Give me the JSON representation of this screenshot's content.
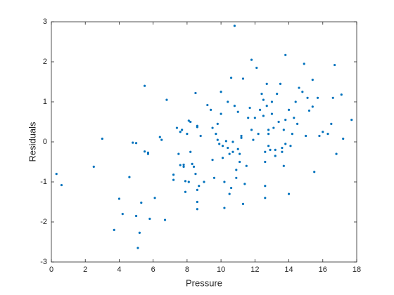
{
  "chart_data": {
    "type": "scatter",
    "xlabel": "Pressure",
    "ylabel": "Residuals",
    "xlim": [
      0,
      18
    ],
    "ylim": [
      -3,
      3
    ],
    "xticks": [
      0,
      2,
      4,
      6,
      8,
      10,
      12,
      14,
      16,
      18
    ],
    "yticks": [
      -3,
      -2,
      -1,
      0,
      1,
      2,
      3
    ],
    "color": "#0072bd",
    "box": true,
    "points": [
      [
        0.3,
        -0.8
      ],
      [
        0.6,
        -1.08
      ],
      [
        2.5,
        -0.62
      ],
      [
        3.0,
        0.08
      ],
      [
        3.7,
        -2.2
      ],
      [
        4.0,
        -1.42
      ],
      [
        4.2,
        -1.8
      ],
      [
        4.6,
        -0.88
      ],
      [
        4.8,
        -0.02
      ],
      [
        5.0,
        -0.03
      ],
      [
        5.0,
        -1.85
      ],
      [
        5.1,
        -2.65
      ],
      [
        5.2,
        -2.27
      ],
      [
        5.3,
        -1.52
      ],
      [
        5.5,
        1.4
      ],
      [
        5.5,
        -0.24
      ],
      [
        5.7,
        -0.27
      ],
      [
        5.7,
        -0.3
      ],
      [
        5.8,
        -1.92
      ],
      [
        6.1,
        -1.4
      ],
      [
        6.4,
        0.12
      ],
      [
        6.5,
        0.05
      ],
      [
        6.7,
        -1.95
      ],
      [
        6.8,
        1.05
      ],
      [
        7.2,
        -0.82
      ],
      [
        7.2,
        -0.95
      ],
      [
        7.4,
        0.35
      ],
      [
        7.5,
        -0.3
      ],
      [
        7.6,
        0.25
      ],
      [
        7.6,
        -0.58
      ],
      [
        7.7,
        0.3
      ],
      [
        7.8,
        -0.57
      ],
      [
        7.8,
        -0.62
      ],
      [
        7.9,
        -0.98
      ],
      [
        7.9,
        -1.25
      ],
      [
        8.0,
        0.2
      ],
      [
        8.1,
        -1.0
      ],
      [
        8.1,
        0.53
      ],
      [
        8.2,
        -0.25
      ],
      [
        8.2,
        0.5
      ],
      [
        8.3,
        -0.55
      ],
      [
        8.4,
        -0.62
      ],
      [
        8.5,
        -0.8
      ],
      [
        8.5,
        1.22
      ],
      [
        8.6,
        0.37
      ],
      [
        8.6,
        0.4
      ],
      [
        8.6,
        -1.2
      ],
      [
        8.6,
        -1.5
      ],
      [
        8.6,
        -1.68
      ],
      [
        8.7,
        -1.1
      ],
      [
        8.8,
        0.15
      ],
      [
        9.0,
        -1.0
      ],
      [
        9.2,
        0.92
      ],
      [
        9.4,
        0.8
      ],
      [
        9.5,
        -0.45
      ],
      [
        9.5,
        0.35
      ],
      [
        9.6,
        -0.9
      ],
      [
        9.7,
        0.2
      ],
      [
        9.8,
        0.45
      ],
      [
        9.8,
        0.05
      ],
      [
        9.9,
        -0.05
      ],
      [
        10.0,
        0.7
      ],
      [
        10.0,
        1.25
      ],
      [
        10.1,
        -0.4
      ],
      [
        10.1,
        -0.1
      ],
      [
        10.2,
        -1.65
      ],
      [
        10.2,
        -1.0
      ],
      [
        10.3,
        0.02
      ],
      [
        10.4,
        1.0
      ],
      [
        10.4,
        -0.15
      ],
      [
        10.5,
        -1.3
      ],
      [
        10.5,
        -0.3
      ],
      [
        10.6,
        1.6
      ],
      [
        10.6,
        -1.15
      ],
      [
        10.7,
        -0.25
      ],
      [
        10.7,
        0.0
      ],
      [
        10.8,
        2.9
      ],
      [
        10.8,
        0.9
      ],
      [
        10.9,
        -0.7
      ],
      [
        10.9,
        -0.9
      ],
      [
        11.0,
        -0.18
      ],
      [
        11.0,
        0.75
      ],
      [
        11.1,
        -0.5
      ],
      [
        11.1,
        -0.3
      ],
      [
        11.2,
        0.1
      ],
      [
        11.2,
        0.15
      ],
      [
        11.3,
        -1.55
      ],
      [
        11.3,
        1.58
      ],
      [
        11.4,
        -1.05
      ],
      [
        11.5,
        -0.6
      ],
      [
        11.6,
        0.6
      ],
      [
        11.7,
        0.85
      ],
      [
        11.8,
        2.05
      ],
      [
        11.8,
        0.3
      ],
      [
        11.9,
        0.05
      ],
      [
        12.0,
        0.6
      ],
      [
        12.1,
        1.85
      ],
      [
        12.2,
        0.2
      ],
      [
        12.3,
        0.8
      ],
      [
        12.4,
        1.2
      ],
      [
        12.5,
        0.65
      ],
      [
        12.5,
        1.05
      ],
      [
        12.6,
        -0.25
      ],
      [
        12.6,
        -0.5
      ],
      [
        12.6,
        -1.1
      ],
      [
        12.6,
        -1.4
      ],
      [
        12.7,
        0.9
      ],
      [
        12.7,
        1.45
      ],
      [
        12.8,
        0.3
      ],
      [
        12.8,
        -0.1
      ],
      [
        12.8,
        0.2
      ],
      [
        12.9,
        -0.2
      ],
      [
        13.0,
        1.0
      ],
      [
        13.0,
        0.7
      ],
      [
        13.1,
        0.35
      ],
      [
        13.2,
        -0.35
      ],
      [
        13.2,
        -0.2
      ],
      [
        13.3,
        1.2
      ],
      [
        13.4,
        0.5
      ],
      [
        13.5,
        1.45
      ],
      [
        13.6,
        -0.15
      ],
      [
        13.6,
        -0.25
      ],
      [
        13.7,
        0.3
      ],
      [
        13.7,
        -0.6
      ],
      [
        13.8,
        0.55
      ],
      [
        13.8,
        -0.05
      ],
      [
        13.8,
        2.17
      ],
      [
        14.0,
        -1.3
      ],
      [
        14.0,
        0.8
      ],
      [
        14.1,
        -0.1
      ],
      [
        14.2,
        0.2
      ],
      [
        14.3,
        0.6
      ],
      [
        14.4,
        1.0
      ],
      [
        14.5,
        0.45
      ],
      [
        14.6,
        1.35
      ],
      [
        14.8,
        1.25
      ],
      [
        14.9,
        1.95
      ],
      [
        15.0,
        0.15
      ],
      [
        15.1,
        1.1
      ],
      [
        15.2,
        0.78
      ],
      [
        15.4,
        1.55
      ],
      [
        15.4,
        0.88
      ],
      [
        15.5,
        -0.75
      ],
      [
        15.7,
        1.1
      ],
      [
        15.8,
        0.15
      ],
      [
        16.0,
        0.25
      ],
      [
        16.3,
        0.2
      ],
      [
        16.5,
        0.45
      ],
      [
        16.6,
        1.1
      ],
      [
        16.7,
        1.92
      ],
      [
        16.8,
        -0.3
      ],
      [
        17.1,
        1.18
      ],
      [
        17.2,
        0.08
      ],
      [
        17.7,
        0.55
      ]
    ]
  }
}
